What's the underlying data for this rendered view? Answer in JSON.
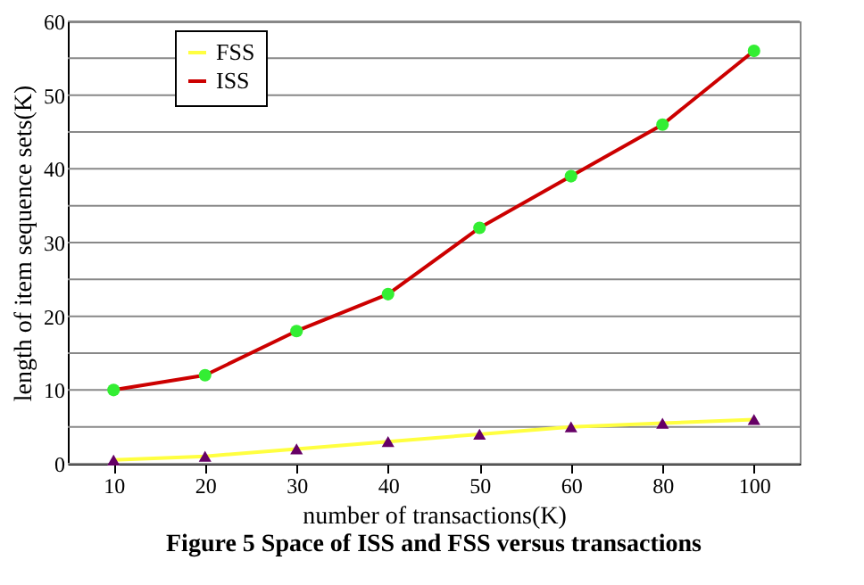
{
  "chart_data": {
    "type": "line",
    "xlabel": "number of transactions(K)",
    "ylabel": "length of item sequence sets(K)",
    "annotations": [
      "Figure 5        Space of ISS and FSS versus transactions"
    ],
    "categories": [
      "10",
      "20",
      "30",
      "40",
      "50",
      "60",
      "80",
      "100"
    ],
    "series": [
      {
        "name": "FSS",
        "color": "#ffff40",
        "marker": "triangle",
        "colors": [
          "#660066",
          "#660066",
          "#660066",
          "#660066",
          "#660066",
          "#660066",
          "#660066",
          "#660066"
        ],
        "values": [
          0.5,
          1,
          2,
          3,
          4,
          5,
          5.5,
          6
        ]
      },
      {
        "name": "ISS",
        "color": "#cc0000",
        "marker": "circle",
        "colors": [
          "#33ee33",
          "#33ee33",
          "#33ee33",
          "#33ee33",
          "#33ee33",
          "#33ee33",
          "#33ee33",
          "#33ee33"
        ],
        "values": [
          10,
          12,
          18,
          23,
          32,
          39,
          46,
          56
        ]
      }
    ],
    "ylim": [
      0,
      60
    ],
    "yticks": [
      0,
      {
        "value": 5,
        "label": null
      },
      10,
      {
        "value": 15,
        "label": null
      },
      20,
      {
        "value": 25,
        "label": null
      },
      30,
      {
        "value": 35,
        "label": null
      },
      40,
      {
        "value": 45,
        "label": null
      },
      50,
      {
        "value": 55,
        "label": null
      },
      60
    ],
    "grid": "y",
    "legend": "top left",
    "line_style": "solid"
  }
}
